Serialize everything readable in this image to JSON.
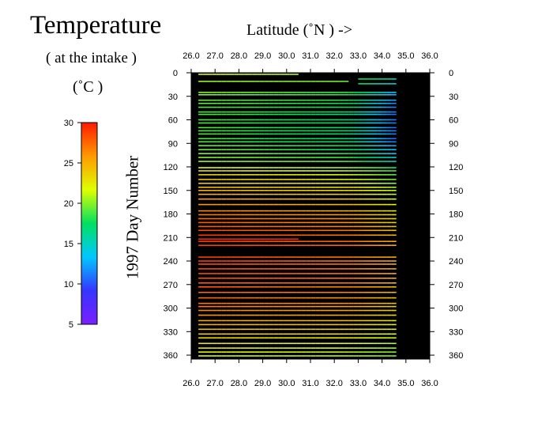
{
  "figure": {
    "title": "Temperature",
    "subtitle": "( at the intake )",
    "units": "(˚C )",
    "x_axis_label": "Latitude  (˚N )  ->",
    "y_axis_label": "1997   Day  Number"
  },
  "colorbar": {
    "min": 5,
    "max": 30,
    "ticks": [
      "30",
      "25",
      "20",
      "15",
      "10",
      "5"
    ],
    "colormap": [
      "#7a1fff",
      "#3535ff",
      "#00c8ff",
      "#00e060",
      "#e0ff00",
      "#ff9a00",
      "#ff1a00"
    ]
  },
  "colors": {
    "plot_background": "#000000",
    "frame": "#000000"
  },
  "chart_data": {
    "type": "heatmap",
    "x_tick_labels": [
      "26.0",
      "27.0",
      "28.0",
      "29.0",
      "30.0",
      "31.0",
      "32.0",
      "33.0",
      "34.0",
      "35.0",
      "36.0"
    ],
    "y_tick_labels": [
      "0",
      "30",
      "60",
      "90",
      "120",
      "150",
      "180",
      "210",
      "240",
      "270",
      "300",
      "330",
      "360"
    ],
    "xlim": [
      26.0,
      36.0
    ],
    "ylim": [
      0,
      365
    ],
    "value_range": [
      5,
      30
    ],
    "series": [
      {
        "day": 2,
        "lat": [
          26.3,
          28.0,
          30.5
        ],
        "temp": [
          22.0,
          21.5,
          21.0
        ]
      },
      {
        "day": 8,
        "lat": [
          33.0,
          34.6
        ],
        "temp": [
          18.0,
          15.0
        ]
      },
      {
        "day": 11,
        "lat": [
          26.3,
          32.6
        ],
        "temp": [
          20.5,
          19.5
        ]
      },
      {
        "day": 14,
        "lat": [
          33.0,
          34.6
        ],
        "temp": [
          17.5,
          14.0
        ]
      },
      {
        "day": 25,
        "lat": [
          26.3,
          32.6,
          34.6
        ],
        "temp": [
          20.0,
          18.5,
          13.0
        ]
      },
      {
        "day": 28,
        "lat": [
          26.3,
          32.6,
          34.6
        ],
        "temp": [
          20.0,
          18.0,
          12.5
        ]
      },
      {
        "day": 35,
        "lat": [
          26.3,
          32.6,
          34.6
        ],
        "temp": [
          19.5,
          18.0,
          12.0
        ]
      },
      {
        "day": 39,
        "lat": [
          26.3,
          32.6,
          34.6
        ],
        "temp": [
          19.5,
          17.5,
          11.5
        ]
      },
      {
        "day": 44,
        "lat": [
          26.3,
          32.6,
          34.6
        ],
        "temp": [
          19.0,
          17.5,
          11.0
        ]
      },
      {
        "day": 50,
        "lat": [
          26.3,
          32.6,
          34.6
        ],
        "temp": [
          19.0,
          17.0,
          11.0
        ]
      },
      {
        "day": 53,
        "lat": [
          26.3,
          32.6,
          34.6
        ],
        "temp": [
          19.0,
          17.0,
          10.5
        ]
      },
      {
        "day": 60,
        "lat": [
          26.3,
          32.6,
          34.6
        ],
        "temp": [
          19.0,
          17.0,
          11.0
        ]
      },
      {
        "day": 64,
        "lat": [
          26.3,
          32.6,
          34.6
        ],
        "temp": [
          19.0,
          17.0,
          11.0
        ]
      },
      {
        "day": 70,
        "lat": [
          26.3,
          32.6,
          34.6
        ],
        "temp": [
          19.0,
          17.0,
          10.5
        ]
      },
      {
        "day": 74,
        "lat": [
          26.3,
          32.6,
          34.6
        ],
        "temp": [
          19.0,
          17.0,
          11.0
        ]
      },
      {
        "day": 78,
        "lat": [
          26.3,
          32.6,
          34.6
        ],
        "temp": [
          19.0,
          17.0,
          11.0
        ]
      },
      {
        "day": 84,
        "lat": [
          26.3,
          32.6,
          34.6
        ],
        "temp": [
          19.0,
          17.0,
          10.5
        ]
      },
      {
        "day": 88,
        "lat": [
          26.3,
          32.6,
          34.6
        ],
        "temp": [
          19.0,
          17.0,
          11.0
        ]
      },
      {
        "day": 93,
        "lat": [
          26.3,
          32.6,
          34.6
        ],
        "temp": [
          19.5,
          17.5,
          12.0
        ]
      },
      {
        "day": 98,
        "lat": [
          26.3,
          32.6,
          34.6
        ],
        "temp": [
          19.5,
          17.5,
          13.0
        ]
      },
      {
        "day": 103,
        "lat": [
          26.3,
          32.6,
          34.6
        ],
        "temp": [
          20.0,
          18.0,
          13.5
        ]
      },
      {
        "day": 108,
        "lat": [
          26.3,
          32.6,
          34.6
        ],
        "temp": [
          20.0,
          18.5,
          14.0
        ]
      },
      {
        "day": 113,
        "lat": [
          26.3,
          32.6,
          34.6
        ],
        "temp": [
          20.5,
          19.0,
          15.0
        ]
      },
      {
        "day": 121,
        "lat": [
          26.3,
          32.6,
          34.6
        ],
        "temp": [
          22.0,
          20.5,
          18.0
        ]
      },
      {
        "day": 125,
        "lat": [
          26.3,
          32.6,
          34.6
        ],
        "temp": [
          23.0,
          21.0,
          18.5
        ]
      },
      {
        "day": 130,
        "lat": [
          26.3,
          32.6,
          34.6
        ],
        "temp": [
          23.5,
          21.5,
          19.0
        ]
      },
      {
        "day": 136,
        "lat": [
          26.3,
          32.6,
          34.6
        ],
        "temp": [
          24.0,
          22.0,
          19.5
        ]
      },
      {
        "day": 141,
        "lat": [
          26.3,
          32.6,
          34.6
        ],
        "temp": [
          24.0,
          22.5,
          20.0
        ]
      },
      {
        "day": 146,
        "lat": [
          26.3,
          32.6,
          34.6
        ],
        "temp": [
          24.5,
          23.0,
          20.5
        ]
      },
      {
        "day": 150,
        "lat": [
          26.3,
          32.6,
          34.6
        ],
        "temp": [
          25.0,
          23.0,
          21.0
        ]
      },
      {
        "day": 155,
        "lat": [
          26.3,
          32.6,
          34.6
        ],
        "temp": [
          25.0,
          23.5,
          21.0
        ]
      },
      {
        "day": 161,
        "lat": [
          26.3,
          32.6,
          34.6
        ],
        "temp": [
          25.5,
          24.0,
          21.5
        ]
      },
      {
        "day": 168,
        "lat": [
          26.3,
          32.6,
          34.6
        ],
        "temp": [
          26.0,
          24.5,
          22.0
        ]
      },
      {
        "day": 176,
        "lat": [
          26.3,
          32.6,
          34.6
        ],
        "temp": [
          26.5,
          25.0,
          22.5
        ]
      },
      {
        "day": 181,
        "lat": [
          26.3,
          32.6,
          34.6
        ],
        "temp": [
          27.0,
          25.5,
          23.0
        ]
      },
      {
        "day": 186,
        "lat": [
          26.3,
          32.6,
          34.6
        ],
        "temp": [
          27.5,
          26.0,
          23.0
        ]
      },
      {
        "day": 191,
        "lat": [
          26.3,
          32.6,
          34.6
        ],
        "temp": [
          28.0,
          26.0,
          23.5
        ]
      },
      {
        "day": 196,
        "lat": [
          26.3,
          32.6,
          34.6
        ],
        "temp": [
          28.0,
          26.5,
          24.0
        ]
      },
      {
        "day": 201,
        "lat": [
          26.3,
          32.6,
          34.6
        ],
        "temp": [
          28.5,
          27.0,
          24.0
        ]
      },
      {
        "day": 207,
        "lat": [
          26.3,
          32.6,
          34.6
        ],
        "temp": [
          29.0,
          27.0,
          24.5
        ]
      },
      {
        "day": 212,
        "lat": [
          26.3,
          30.5
        ],
        "temp": [
          29.5,
          29.5
        ]
      },
      {
        "day": 215,
        "lat": [
          26.3,
          32.6,
          34.6
        ],
        "temp": [
          29.0,
          27.5,
          25.0
        ]
      },
      {
        "day": 220,
        "lat": [
          26.3,
          32.6,
          34.6
        ],
        "temp": [
          29.0,
          27.5,
          25.0
        ]
      },
      {
        "day": 235,
        "lat": [
          26.3,
          32.6,
          34.6
        ],
        "temp": [
          29.0,
          27.0,
          25.0
        ]
      },
      {
        "day": 240,
        "lat": [
          26.3,
          32.6,
          34.6
        ],
        "temp": [
          29.0,
          27.0,
          25.0
        ]
      },
      {
        "day": 244,
        "lat": [
          26.3,
          32.6,
          34.6
        ],
        "temp": [
          28.5,
          27.0,
          25.0
        ]
      },
      {
        "day": 250,
        "lat": [
          26.3,
          32.6,
          34.6
        ],
        "temp": [
          28.5,
          27.0,
          25.0
        ]
      },
      {
        "day": 256,
        "lat": [
          26.3,
          32.6,
          34.6
        ],
        "temp": [
          28.5,
          27.0,
          25.0
        ]
      },
      {
        "day": 262,
        "lat": [
          26.3,
          32.6,
          34.6
        ],
        "temp": [
          28.5,
          27.0,
          25.0
        ]
      },
      {
        "day": 268,
        "lat": [
          26.3,
          32.6,
          34.6
        ],
        "temp": [
          28.0,
          27.0,
          24.5
        ]
      },
      {
        "day": 273,
        "lat": [
          26.3,
          32.6,
          34.6
        ],
        "temp": [
          28.0,
          26.5,
          24.5
        ]
      },
      {
        "day": 280,
        "lat": [
          26.3,
          32.6,
          34.6
        ],
        "temp": [
          27.5,
          26.5,
          24.5
        ]
      },
      {
        "day": 287,
        "lat": [
          26.3,
          32.6,
          34.6
        ],
        "temp": [
          27.5,
          26.0,
          24.0
        ]
      },
      {
        "day": 294,
        "lat": [
          26.3,
          32.6,
          34.6
        ],
        "temp": [
          27.0,
          26.0,
          24.0
        ]
      },
      {
        "day": 298,
        "lat": [
          26.3,
          32.6,
          34.6
        ],
        "temp": [
          27.0,
          25.5,
          23.5
        ]
      },
      {
        "day": 303,
        "lat": [
          26.3,
          32.6,
          34.6
        ],
        "temp": [
          26.5,
          25.5,
          23.5
        ]
      },
      {
        "day": 309,
        "lat": [
          26.3,
          32.6,
          34.6
        ],
        "temp": [
          26.0,
          25.0,
          23.0
        ]
      },
      {
        "day": 316,
        "lat": [
          26.3,
          32.6,
          34.6
        ],
        "temp": [
          25.5,
          24.5,
          22.5
        ]
      },
      {
        "day": 321,
        "lat": [
          26.3,
          32.6,
          34.6
        ],
        "temp": [
          25.0,
          24.0,
          22.0
        ]
      },
      {
        "day": 327,
        "lat": [
          26.3,
          32.6,
          34.6
        ],
        "temp": [
          24.5,
          23.5,
          22.0
        ]
      },
      {
        "day": 333,
        "lat": [
          26.3,
          32.6,
          34.6
        ],
        "temp": [
          24.0,
          23.0,
          21.5
        ]
      },
      {
        "day": 338,
        "lat": [
          26.3,
          32.6,
          34.6
        ],
        "temp": [
          23.5,
          22.5,
          21.0
        ]
      },
      {
        "day": 345,
        "lat": [
          26.3,
          32.6,
          34.6
        ],
        "temp": [
          23.0,
          22.0,
          20.5
        ]
      },
      {
        "day": 351,
        "lat": [
          26.3,
          32.6,
          34.6
        ],
        "temp": [
          22.5,
          21.5,
          20.5
        ]
      },
      {
        "day": 356,
        "lat": [
          26.3,
          32.6,
          34.6
        ],
        "temp": [
          22.0,
          21.0,
          20.0
        ]
      },
      {
        "day": 361,
        "lat": [
          26.3,
          32.6,
          34.6
        ],
        "temp": [
          21.5,
          21.0,
          20.0
        ]
      }
    ]
  }
}
